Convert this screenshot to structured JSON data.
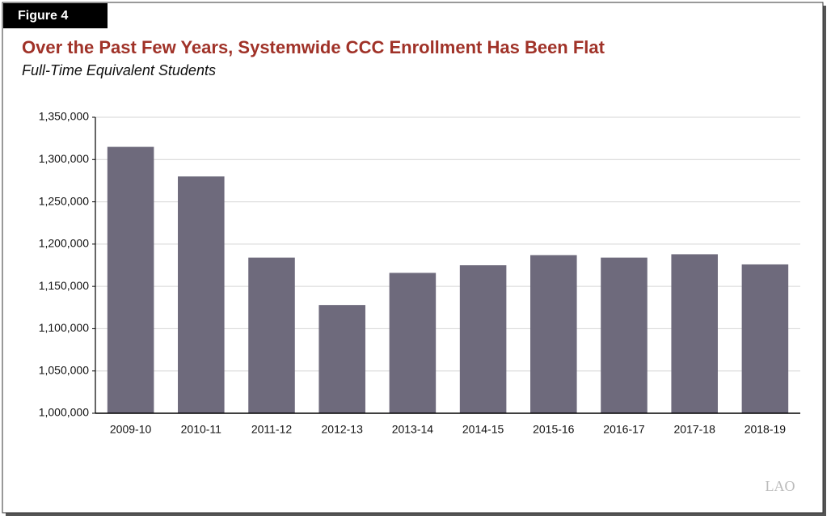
{
  "chart_data": {
    "type": "bar",
    "figure_label": "Figure 4",
    "title": "Over the Past Few Years, Systemwide CCC Enrollment Has Been Flat",
    "subtitle": "Full-Time Equivalent Students",
    "logo": "LAO",
    "categories": [
      "2009-10",
      "2010-11",
      "2011-12",
      "2012-13",
      "2013-14",
      "2014-15",
      "2015-16",
      "2016-17",
      "2017-18",
      "2018-19"
    ],
    "values": [
      1315000,
      1280000,
      1184000,
      1128000,
      1166000,
      1175000,
      1187000,
      1184000,
      1188000,
      1176000
    ],
    "color": "#6e6a7c",
    "ylim": [
      1000000,
      1350000
    ],
    "yticks": [
      {
        "value": 1000000,
        "label": "1,000,000"
      },
      {
        "value": 1050000,
        "label": "1,050,000"
      },
      {
        "value": 1100000,
        "label": "1,100,000"
      },
      {
        "value": 1150000,
        "label": "1,150,000"
      },
      {
        "value": 1200000,
        "label": "1,200,000"
      },
      {
        "value": 1250000,
        "label": "1,250,000"
      },
      {
        "value": 1300000,
        "label": "1,300,000"
      },
      {
        "value": 1350000,
        "label": "1,350,000"
      }
    ],
    "grid": true
  }
}
